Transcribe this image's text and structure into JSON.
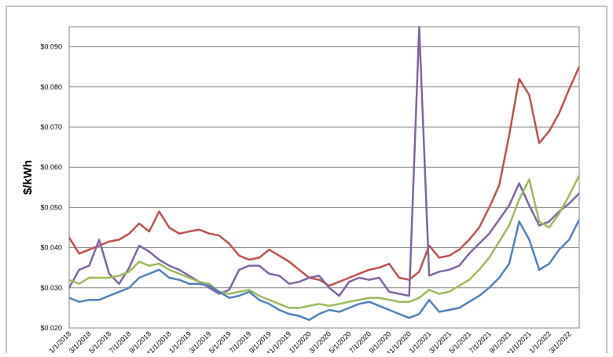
{
  "chart_data": {
    "type": "line",
    "title": "",
    "xlabel": "",
    "ylabel": "$/kWh",
    "ylim": [
      0.02,
      0.095
    ],
    "yticks": [
      "$0.020",
      "$0.030",
      "$0.040",
      "$0.050",
      "$0.060",
      "$0.070",
      "$0.080",
      "$0.090"
    ],
    "xticks": [
      "1/1/2018",
      "3/1/2018",
      "5/1/2018",
      "7/1/2018",
      "9/1/2018",
      "11/1/2018",
      "1/1/2019",
      "3/1/2019",
      "5/1/2019",
      "7/1/2019",
      "9/1/2019",
      "11/1/2019",
      "1/1/2020",
      "3/1/2020",
      "5/1/2020",
      "7/1/2020",
      "9/1/2020",
      "11/1/2020",
      "1/1/2021",
      "3/1/2021",
      "5/1/2021",
      "7/1/2021",
      "9/1/2021",
      "11/1/2021",
      "1/1/2022",
      "3/1/2022"
    ],
    "x_range": [
      "2018-01",
      "2022-04"
    ],
    "grid": true,
    "legend": "none",
    "series": [
      {
        "color": "#c0504d",
        "x": [
          "2018-01",
          "2018-02",
          "2018-03",
          "2018-04",
          "2018-05",
          "2018-06",
          "2018-07",
          "2018-08",
          "2018-09",
          "2018-10",
          "2018-11",
          "2018-12",
          "2019-01",
          "2019-02",
          "2019-03",
          "2019-04",
          "2019-05",
          "2019-06",
          "2019-07",
          "2019-08",
          "2019-09",
          "2019-10",
          "2019-11",
          "2019-12",
          "2020-01",
          "2020-02",
          "2020-03",
          "2020-04",
          "2020-05",
          "2020-06",
          "2020-07",
          "2020-08",
          "2020-09",
          "2020-10",
          "2020-11",
          "2020-12",
          "2021-01",
          "2021-02",
          "2021-03",
          "2021-04",
          "2021-05",
          "2021-06",
          "2021-07",
          "2021-08",
          "2021-09",
          "2021-10",
          "2021-11",
          "2021-12",
          "2022-01",
          "2022-02",
          "2022-03",
          "2022-04"
        ],
        "y": [
          0.0425,
          0.0385,
          0.0395,
          0.0405,
          0.0415,
          0.042,
          0.0435,
          0.046,
          0.044,
          0.049,
          0.045,
          0.0435,
          0.044,
          0.0445,
          0.0435,
          0.043,
          0.041,
          0.038,
          0.037,
          0.0375,
          0.0395,
          0.038,
          0.0365,
          0.0345,
          0.0325,
          0.032,
          0.0305,
          0.0315,
          0.0325,
          0.0335,
          0.0345,
          0.035,
          0.036,
          0.0325,
          0.032,
          0.034,
          0.0405,
          0.0375,
          0.038,
          0.0395,
          0.042,
          0.045,
          0.05,
          0.0555,
          0.068,
          0.082,
          0.078,
          0.066,
          0.069,
          0.0735,
          0.0795,
          0.085
        ]
      },
      {
        "color": "#8064a2",
        "x": [
          "2018-01",
          "2018-02",
          "2018-03",
          "2018-04",
          "2018-05",
          "2018-06",
          "2018-07",
          "2018-08",
          "2018-09",
          "2018-10",
          "2018-11",
          "2018-12",
          "2019-01",
          "2019-02",
          "2019-03",
          "2019-04",
          "2019-05",
          "2019-06",
          "2019-07",
          "2019-08",
          "2019-09",
          "2019-10",
          "2019-11",
          "2019-12",
          "2020-01",
          "2020-02",
          "2020-03",
          "2020-04",
          "2020-05",
          "2020-06",
          "2020-07",
          "2020-08",
          "2020-09",
          "2020-10",
          "2020-11",
          "2020-12",
          "2021-01",
          "2021-02",
          "2021-03",
          "2021-04",
          "2021-05",
          "2021-06",
          "2021-07",
          "2021-08",
          "2021-09",
          "2021-10",
          "2021-11",
          "2021-12",
          "2022-01",
          "2022-02",
          "2022-03",
          "2022-04"
        ],
        "y": [
          0.03,
          0.0345,
          0.0355,
          0.042,
          0.0335,
          0.031,
          0.035,
          0.0405,
          0.039,
          0.037,
          0.0355,
          0.0345,
          0.033,
          0.0315,
          0.03,
          0.0285,
          0.0295,
          0.0345,
          0.0355,
          0.0355,
          0.0335,
          0.033,
          0.031,
          0.0315,
          0.0325,
          0.033,
          0.03,
          0.028,
          0.0315,
          0.0325,
          0.032,
          0.0325,
          0.029,
          0.0285,
          0.028,
          0.095,
          0.033,
          0.034,
          0.0345,
          0.0355,
          0.0385,
          0.041,
          0.0435,
          0.047,
          0.0505,
          0.056,
          0.0505,
          0.0455,
          0.0465,
          0.049,
          0.051,
          0.0535
        ]
      },
      {
        "color": "#9bbb59",
        "x": [
          "2018-01",
          "2018-02",
          "2018-03",
          "2018-04",
          "2018-05",
          "2018-06",
          "2018-07",
          "2018-08",
          "2018-09",
          "2018-10",
          "2018-11",
          "2018-12",
          "2019-01",
          "2019-02",
          "2019-03",
          "2019-04",
          "2019-05",
          "2019-06",
          "2019-07",
          "2019-08",
          "2019-09",
          "2019-10",
          "2019-11",
          "2019-12",
          "2020-01",
          "2020-02",
          "2020-03",
          "2020-04",
          "2020-05",
          "2020-06",
          "2020-07",
          "2020-08",
          "2020-09",
          "2020-10",
          "2020-11",
          "2020-12",
          "2021-01",
          "2021-02",
          "2021-03",
          "2021-04",
          "2021-05",
          "2021-06",
          "2021-07",
          "2021-08",
          "2021-09",
          "2021-10",
          "2021-11",
          "2021-12",
          "2022-01",
          "2022-02",
          "2022-03",
          "2022-04"
        ],
        "y": [
          0.032,
          0.031,
          0.0325,
          0.0325,
          0.0325,
          0.033,
          0.034,
          0.0365,
          0.0355,
          0.036,
          0.0345,
          0.0335,
          0.0325,
          0.0315,
          0.031,
          0.029,
          0.0285,
          0.029,
          0.0295,
          0.028,
          0.027,
          0.026,
          0.025,
          0.025,
          0.0255,
          0.026,
          0.0255,
          0.026,
          0.0265,
          0.027,
          0.0275,
          0.0275,
          0.027,
          0.0265,
          0.0265,
          0.0275,
          0.0295,
          0.0285,
          0.029,
          0.0305,
          0.032,
          0.0345,
          0.0375,
          0.0415,
          0.0455,
          0.052,
          0.057,
          0.0465,
          0.045,
          0.0485,
          0.053,
          0.058
        ]
      },
      {
        "color": "#4f81bd",
        "x": [
          "2018-01",
          "2018-02",
          "2018-03",
          "2018-04",
          "2018-05",
          "2018-06",
          "2018-07",
          "2018-08",
          "2018-09",
          "2018-10",
          "2018-11",
          "2018-12",
          "2019-01",
          "2019-02",
          "2019-03",
          "2019-04",
          "2019-05",
          "2019-06",
          "2019-07",
          "2019-08",
          "2019-09",
          "2019-10",
          "2019-11",
          "2019-12",
          "2020-01",
          "2020-02",
          "2020-03",
          "2020-04",
          "2020-05",
          "2020-06",
          "2020-07",
          "2020-08",
          "2020-09",
          "2020-10",
          "2020-11",
          "2020-12",
          "2021-01",
          "2021-02",
          "2021-03",
          "2021-04",
          "2021-05",
          "2021-06",
          "2021-07",
          "2021-08",
          "2021-09",
          "2021-10",
          "2021-11",
          "2021-12",
          "2022-01",
          "2022-02",
          "2022-03",
          "2022-04"
        ],
        "y": [
          0.0275,
          0.0265,
          0.027,
          0.027,
          0.028,
          0.029,
          0.03,
          0.0325,
          0.0335,
          0.0345,
          0.0325,
          0.032,
          0.031,
          0.031,
          0.0305,
          0.029,
          0.0275,
          0.028,
          0.029,
          0.027,
          0.026,
          0.0245,
          0.0235,
          0.023,
          0.022,
          0.0235,
          0.0245,
          0.024,
          0.025,
          0.026,
          0.0265,
          0.0255,
          0.0245,
          0.0235,
          0.0225,
          0.0235,
          0.027,
          0.024,
          0.0245,
          0.025,
          0.0265,
          0.028,
          0.03,
          0.0325,
          0.036,
          0.0465,
          0.042,
          0.0345,
          0.036,
          0.0395,
          0.042,
          0.047
        ]
      }
    ]
  }
}
